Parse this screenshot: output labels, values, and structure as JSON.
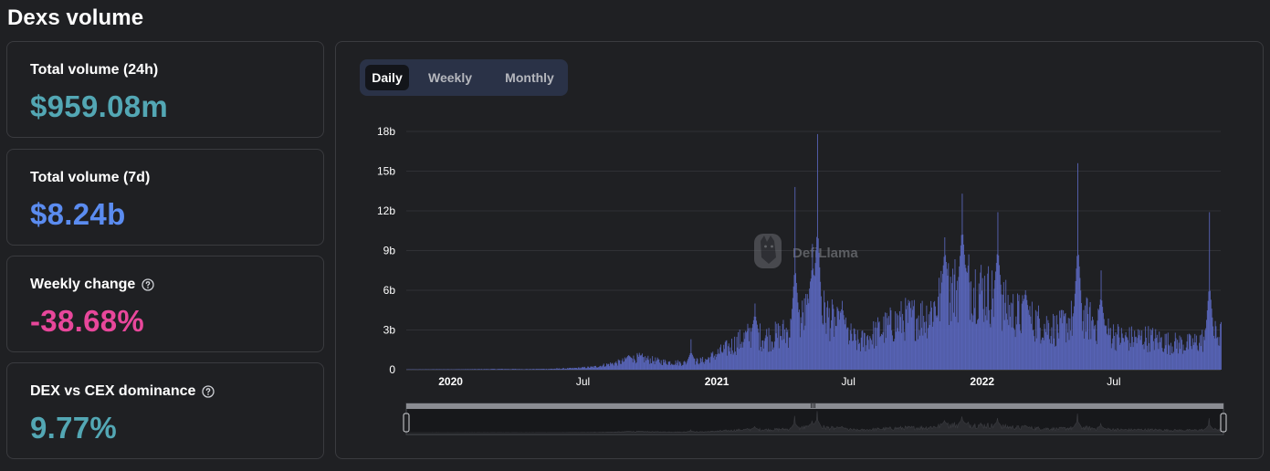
{
  "page": {
    "title": "Dexs volume"
  },
  "stats": [
    {
      "label": "Total volume (24h)",
      "value": "$959.08m",
      "color": "#53a7b4",
      "help": false
    },
    {
      "label": "Total volume (7d)",
      "value": "$8.24b",
      "color": "#5b8cf0",
      "help": false
    },
    {
      "label": "Weekly change",
      "value": "-38.68%",
      "color": "#e8479b",
      "help": true
    },
    {
      "label": "DEX vs CEX dominance",
      "value": "9.77%",
      "color": "#53a7b4",
      "help": true
    }
  ],
  "tabs": [
    {
      "label": "Daily",
      "active": true
    },
    {
      "label": "Weekly",
      "active": false
    },
    {
      "label": "Monthly",
      "active": false
    }
  ],
  "watermark": {
    "text": "DefiLlama",
    "icon": "llama-logo-icon"
  },
  "colors": {
    "bar": "#5763b5",
    "background": "#1f2023",
    "grid": "#2f3035"
  },
  "chart_data": {
    "type": "bar",
    "x_start": "2019-11",
    "x_end": "2022-11",
    "x_tick_labels": [
      "2020",
      "Jul",
      "2021",
      "Jul",
      "2022",
      "Jul"
    ],
    "x_tick_dates": [
      "2020-01",
      "2020-07",
      "2021-01",
      "2021-07",
      "2022-01",
      "2022-07"
    ],
    "y_tick_labels": [
      "0",
      "3b",
      "6b",
      "9b",
      "12b",
      "15b",
      "18b"
    ],
    "ylim": [
      0,
      18
    ],
    "y_unit": "billions USD",
    "grid": true,
    "monthly_baseline": [
      {
        "month": "2019-11",
        "v": 0.02
      },
      {
        "month": "2019-12",
        "v": 0.03
      },
      {
        "month": "2020-01",
        "v": 0.03
      },
      {
        "month": "2020-02",
        "v": 0.04
      },
      {
        "month": "2020-03",
        "v": 0.05
      },
      {
        "month": "2020-04",
        "v": 0.04
      },
      {
        "month": "2020-05",
        "v": 0.06
      },
      {
        "month": "2020-06",
        "v": 0.1
      },
      {
        "month": "2020-07",
        "v": 0.2
      },
      {
        "month": "2020-08",
        "v": 0.5
      },
      {
        "month": "2020-09",
        "v": 0.9
      },
      {
        "month": "2020-10",
        "v": 0.6
      },
      {
        "month": "2020-11",
        "v": 0.5
      },
      {
        "month": "2020-12",
        "v": 0.7
      },
      {
        "month": "2021-01",
        "v": 1.6
      },
      {
        "month": "2021-02",
        "v": 2.6
      },
      {
        "month": "2021-03",
        "v": 2.4
      },
      {
        "month": "2021-04",
        "v": 3.0
      },
      {
        "month": "2021-05",
        "v": 5.0
      },
      {
        "month": "2021-06",
        "v": 3.3
      },
      {
        "month": "2021-07",
        "v": 2.0
      },
      {
        "month": "2021-08",
        "v": 3.0
      },
      {
        "month": "2021-09",
        "v": 3.8
      },
      {
        "month": "2021-10",
        "v": 4.0
      },
      {
        "month": "2021-11",
        "v": 6.0
      },
      {
        "month": "2021-12",
        "v": 6.5
      },
      {
        "month": "2022-01",
        "v": 5.5
      },
      {
        "month": "2022-02",
        "v": 4.2
      },
      {
        "month": "2022-03",
        "v": 3.6
      },
      {
        "month": "2022-04",
        "v": 3.0
      },
      {
        "month": "2022-05",
        "v": 4.2
      },
      {
        "month": "2022-06",
        "v": 3.0
      },
      {
        "month": "2022-07",
        "v": 2.3
      },
      {
        "month": "2022-08",
        "v": 2.4
      },
      {
        "month": "2022-09",
        "v": 2.0
      },
      {
        "month": "2022-10",
        "v": 1.9
      },
      {
        "month": "2022-11",
        "v": 2.6
      }
    ],
    "peaks": [
      {
        "date": "2020-09-01",
        "v": 1.1
      },
      {
        "date": "2020-11-26",
        "v": 2.3
      },
      {
        "date": "2021-02-22",
        "v": 5.0
      },
      {
        "date": "2021-04-18",
        "v": 13.8
      },
      {
        "date": "2021-05-12",
        "v": 9.5
      },
      {
        "date": "2021-05-19",
        "v": 17.8
      },
      {
        "date": "2021-06-22",
        "v": 5.2
      },
      {
        "date": "2021-11-10",
        "v": 10.0
      },
      {
        "date": "2021-12-04",
        "v": 13.3
      },
      {
        "date": "2022-01-22",
        "v": 11.9
      },
      {
        "date": "2022-03-01",
        "v": 6.0
      },
      {
        "date": "2022-05-12",
        "v": 15.6
      },
      {
        "date": "2022-06-13",
        "v": 7.5
      },
      {
        "date": "2022-11-09",
        "v": 11.9
      }
    ]
  }
}
